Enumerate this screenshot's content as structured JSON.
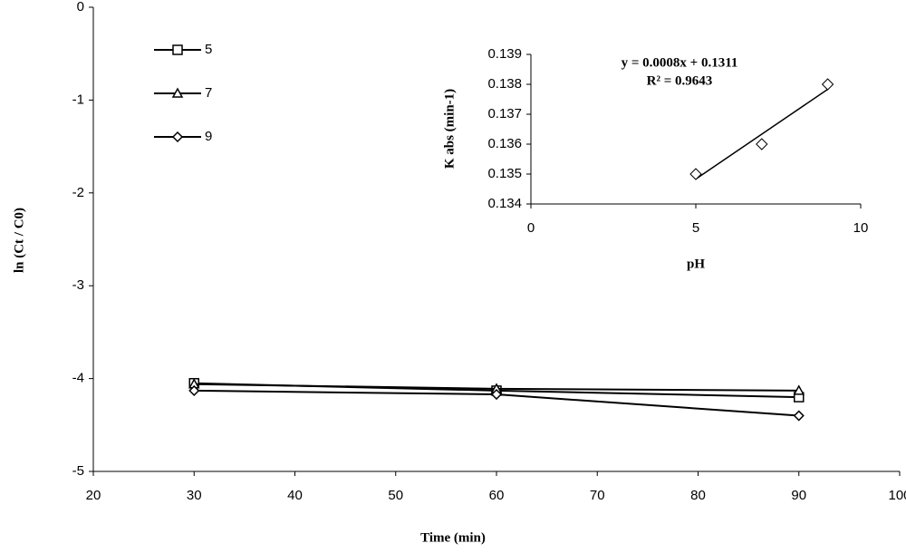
{
  "chart_data": [
    {
      "type": "line",
      "xlabel": "Time (min)",
      "ylabel": "ln (Ct / C0)",
      "x": [
        30,
        60,
        90
      ],
      "series": [
        {
          "name": "5",
          "color": "#000000",
          "marker": "square",
          "values": [
            -4.05,
            -4.13,
            -4.2
          ]
        },
        {
          "name": "7",
          "color": "#000000",
          "marker": "triangle",
          "values": [
            -4.06,
            -4.11,
            -4.13
          ]
        },
        {
          "name": "9",
          "color": "#000000",
          "marker": "diamond",
          "values": [
            -4.13,
            -4.17,
            -4.4
          ]
        }
      ],
      "xlim": [
        20,
        100
      ],
      "xticks": [
        20,
        30,
        40,
        50,
        60,
        70,
        80,
        90,
        100
      ],
      "ylim": [
        -5,
        0
      ],
      "yticks": [
        0,
        -1,
        -2,
        -3,
        -4,
        -5
      ],
      "legend": "upper left"
    },
    {
      "type": "scatter",
      "xlabel": "pH",
      "ylabel": "K abs (min-1)",
      "annotations": [
        "y = 0.0008x + 0.1311",
        "R² = 0.9643"
      ],
      "x": [
        5,
        7,
        9
      ],
      "values": [
        0.135,
        0.136,
        0.138
      ],
      "color": "#000000",
      "marker": "diamond",
      "trendline": true,
      "xlim": [
        0,
        10
      ],
      "xticks": [
        0,
        5,
        10
      ],
      "ylim": [
        0.134,
        0.139
      ],
      "yticks": [
        0.134,
        0.135,
        0.136,
        0.137,
        0.138,
        0.139
      ]
    }
  ]
}
